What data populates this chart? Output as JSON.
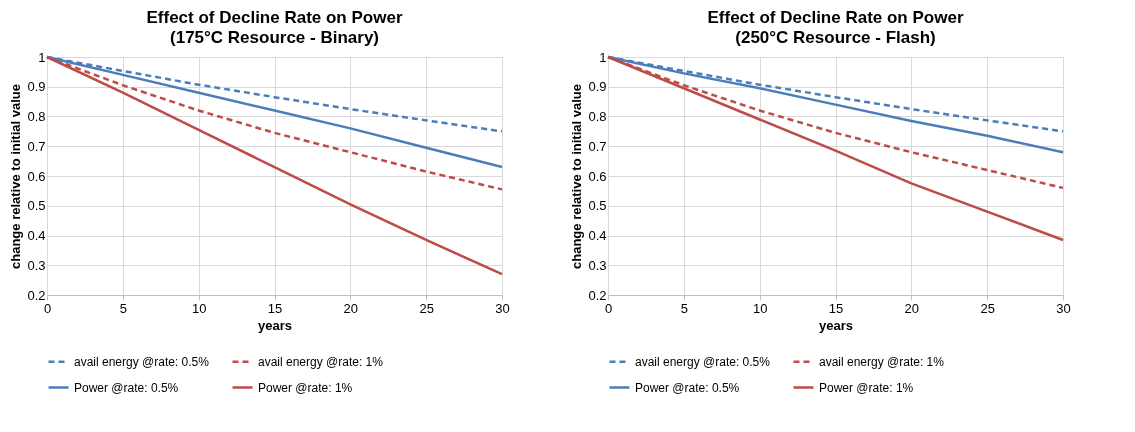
{
  "chart_data": [
    {
      "type": "line",
      "title": "Effect of Decline Rate on Power",
      "subtitle": "(175°C Resource - Binary)",
      "xlabel": "years",
      "ylabel": "change relative to initial value",
      "x": [
        0,
        5,
        10,
        15,
        20,
        25,
        30
      ],
      "series": [
        {
          "name": "avail energy @rate: 0.5%",
          "color": "#4a7ebb",
          "line_style": "dashed",
          "values": [
            1,
            0.953,
            0.907,
            0.865,
            0.825,
            0.787,
            0.75
          ]
        },
        {
          "name": "avail energy @rate: 1%",
          "color": "#be4b48",
          "line_style": "dashed",
          "values": [
            1,
            0.905,
            0.82,
            0.745,
            0.68,
            0.615,
            0.555
          ]
        },
        {
          "name": "Power @rate: 0.5%",
          "color": "#4a7ebb",
          "line_style": "solid",
          "values": [
            1,
            0.94,
            0.88,
            0.82,
            0.76,
            0.695,
            0.63
          ]
        },
        {
          "name": "Power @rate: 1%",
          "color": "#be4b48",
          "line_style": "solid",
          "values": [
            1,
            0.88,
            0.755,
            0.63,
            0.505,
            0.385,
            0.27
          ]
        }
      ],
      "xlim": [
        0,
        30
      ],
      "xticks": [
        0,
        5,
        10,
        15,
        20,
        25,
        30
      ],
      "ylim": [
        0.2,
        1
      ],
      "yticks": [
        0.2,
        0.3,
        0.4,
        0.5,
        0.6,
        0.7,
        0.8,
        0.9,
        1
      ],
      "grid": true,
      "legend": "bottom",
      "marker": "none"
    },
    {
      "type": "line",
      "title": "Effect of Decline Rate on Power",
      "subtitle": "(250°C Resource - Flash)",
      "xlabel": "years",
      "ylabel": "change relative to initial value",
      "x": [
        0,
        5,
        10,
        15,
        20,
        25,
        30
      ],
      "series": [
        {
          "name": "avail energy @rate: 0.5%",
          "color": "#4a7ebb",
          "line_style": "dashed",
          "values": [
            1,
            0.953,
            0.907,
            0.865,
            0.825,
            0.787,
            0.75
          ]
        },
        {
          "name": "avail energy @rate: 1%",
          "color": "#be4b48",
          "line_style": "dashed",
          "values": [
            1,
            0.905,
            0.82,
            0.745,
            0.68,
            0.62,
            0.56
          ]
        },
        {
          "name": "Power @rate: 0.5%",
          "color": "#4a7ebb",
          "line_style": "solid",
          "values": [
            1,
            0.945,
            0.895,
            0.84,
            0.785,
            0.735,
            0.68
          ]
        },
        {
          "name": "Power @rate: 1%",
          "color": "#be4b48",
          "line_style": "solid",
          "values": [
            1,
            0.895,
            0.79,
            0.685,
            0.575,
            0.48,
            0.385
          ]
        }
      ],
      "xlim": [
        0,
        30
      ],
      "xticks": [
        0,
        5,
        10,
        15,
        20,
        25,
        30
      ],
      "ylim": [
        0.2,
        1
      ],
      "yticks": [
        0.2,
        0.3,
        0.4,
        0.5,
        0.6,
        0.7,
        0.8,
        0.9,
        1
      ],
      "grid": true,
      "legend": "bottom",
      "marker": "none"
    }
  ]
}
